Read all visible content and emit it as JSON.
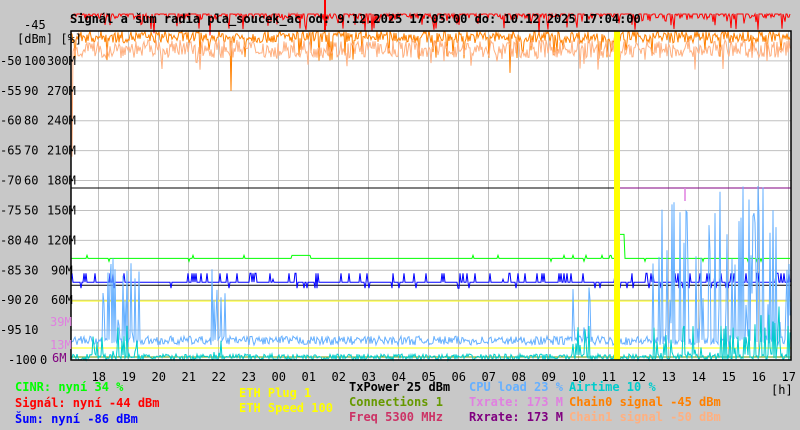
{
  "chart_data": {
    "type": "line",
    "title": "Signál a šum radia pla_soucek_ac od: 9.12.2025 17:05:00 do: 10.12.2025 17:04:00",
    "y_units_label": "[dBm] [%]",
    "x_unit_label": "[h]",
    "x_ticks": [
      "18",
      "19",
      "20",
      "21",
      "22",
      "23",
      "00",
      "01",
      "02",
      "03",
      "04",
      "05",
      "06",
      "07",
      "08",
      "09",
      "10",
      "11",
      "12",
      "13",
      "14",
      "15",
      "16",
      "17"
    ],
    "y_ticks_dbm": [
      "-45",
      "-50",
      "-55",
      "-60",
      "-65",
      "-70",
      "-75",
      "-80",
      "-85",
      "-90",
      "-95",
      "-100"
    ],
    "y_ticks_pct": [
      "",
      "100",
      "90",
      "80",
      "70",
      "60",
      "50",
      "40",
      "30",
      "20",
      "10",
      "0"
    ],
    "y_ticks_rate": [
      "",
      "300M",
      "270M",
      "240M",
      "210M",
      "180M",
      "150M",
      "120M",
      "90M",
      "60M",
      "",
      ""
    ],
    "ylim_dbm": [
      -100,
      -45
    ],
    "ylim_pct": [
      0,
      100
    ],
    "ylim_rate_mbit": [
      0,
      300
    ],
    "rate_markers": [
      {
        "label": "39M",
        "value": 39,
        "color": "#e080e0"
      },
      {
        "label": "13M",
        "value": 13,
        "color": "#e080e0"
      },
      {
        "label": "6M",
        "value": 6,
        "color": "#800080"
      }
    ],
    "grid": true,
    "outage_time": "11:17",
    "series": [
      {
        "name": "Signál",
        "color": "#ff0000",
        "axis": "dBm",
        "typical": -44
      },
      {
        "name": "Chain0 signal",
        "color": "#ff8000",
        "axis": "dBm",
        "typical": -46
      },
      {
        "name": "Chain1 signal",
        "color": "#ffb080",
        "axis": "dBm",
        "typical": -48
      },
      {
        "name": "Šum",
        "color": "#0000ff",
        "axis": "dBm",
        "typical": -87
      },
      {
        "name": "CINR",
        "color": "#00ff00",
        "axis": "%",
        "typical": 34
      },
      {
        "name": "TxPower",
        "color": "#000000",
        "axis": "%",
        "typical": 25
      },
      {
        "name": "Connections",
        "color": "#669900",
        "axis": "%",
        "typical": 1
      },
      {
        "name": "ETH Plug",
        "color": "#ffff00",
        "axis": "%",
        "typical": 4
      },
      {
        "name": "ETH Speed",
        "color": "#ffff00",
        "axis": "rate",
        "typical": 60
      },
      {
        "name": "CPU load",
        "color": "#66b0ff",
        "axis": "%",
        "typical": 5
      },
      {
        "name": "Airtime",
        "color": "#00cccc",
        "axis": "%",
        "typical": 2
      },
      {
        "name": "Rxrate",
        "color": "#800080",
        "axis": "rate",
        "typical": 173
      },
      {
        "name": "Txrate",
        "color": "#e080e0",
        "axis": "rate",
        "typical": 173
      }
    ]
  },
  "legend": [
    {
      "text": "CINR: nyní 34 %",
      "color": "#00ff00"
    },
    {
      "text": "Signál: nyní -44 dBm",
      "color": "#ff0000"
    },
    {
      "text": "Šum: nyní -86 dBm",
      "color": "#0000ff"
    },
    {
      "text": "ETH Plug 1",
      "color": "#ffff00"
    },
    {
      "text": "ETH Speed 100",
      "color": "#ffff00"
    },
    {
      "text": "TxPower 25 dBm",
      "color": "#000000"
    },
    {
      "text": "Connections 1",
      "color": "#669900"
    },
    {
      "text": "Freq 5300 MHz",
      "color": "#cc3366"
    },
    {
      "text": "CPU load 23 %",
      "color": "#66b0ff"
    },
    {
      "text": "Txrate: 173 M",
      "color": "#e080e0"
    },
    {
      "text": "Rxrate: 173 M",
      "color": "#800080"
    },
    {
      "text": "Airtime 10 %",
      "color": "#00cccc"
    },
    {
      "text": "Chain0 signal -45 dBm",
      "color": "#ff8000"
    },
    {
      "text": "Chain1 signal -50 dBm",
      "color": "#ffb080"
    }
  ]
}
